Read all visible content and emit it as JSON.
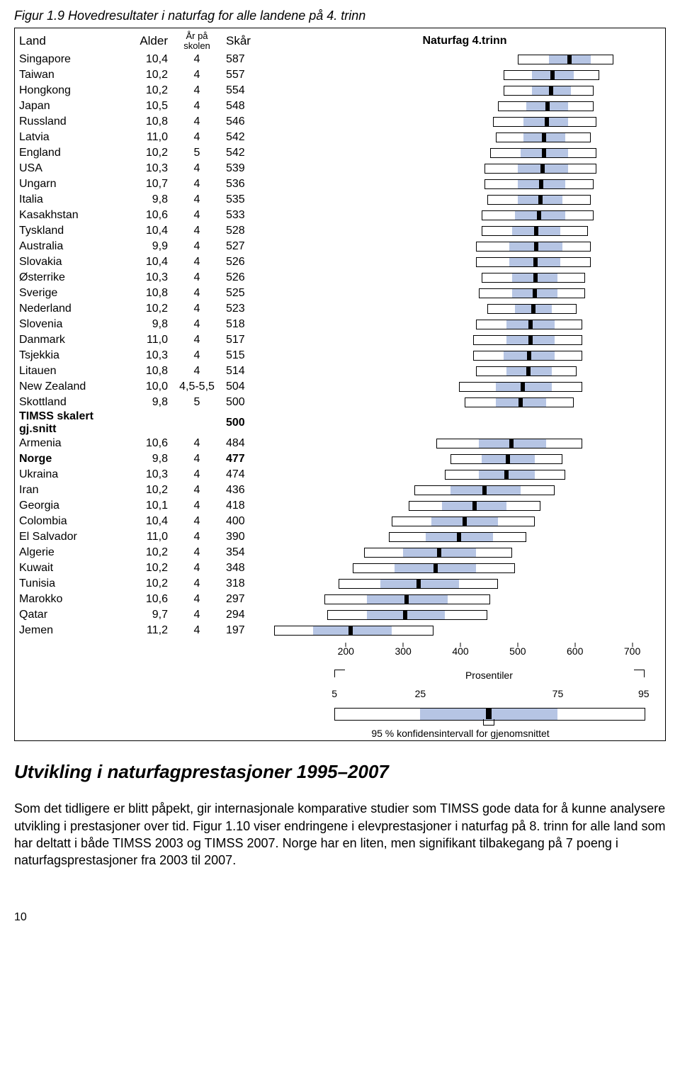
{
  "figure_title": "Figur 1.9 Hovedresultater i naturfag for alle landene på 4. trinn",
  "headers": {
    "land": "Land",
    "alder": "Alder",
    "skolen": "År på skolen",
    "skar": "Skår",
    "chart": "Naturfag 4.trinn"
  },
  "rows": [
    {
      "land": "Singapore",
      "alder": "10,4",
      "skolen": "4",
      "skar": 587,
      "p5": 495,
      "p25": 550,
      "p75": 625,
      "p95": 665,
      "bold": false
    },
    {
      "land": "Taiwan",
      "alder": "10,2",
      "skolen": "4",
      "skar": 557,
      "p5": 470,
      "p25": 520,
      "p75": 595,
      "p95": 640,
      "bold": false
    },
    {
      "land": "Hongkong",
      "alder": "10,2",
      "skolen": "4",
      "skar": 554,
      "p5": 470,
      "p25": 520,
      "p75": 590,
      "p95": 630,
      "bold": false
    },
    {
      "land": "Japan",
      "alder": "10,5",
      "skolen": "4",
      "skar": 548,
      "p5": 460,
      "p25": 510,
      "p75": 585,
      "p95": 630,
      "bold": false
    },
    {
      "land": "Russland",
      "alder": "10,8",
      "skolen": "4",
      "skar": 546,
      "p5": 450,
      "p25": 505,
      "p75": 585,
      "p95": 635,
      "bold": false
    },
    {
      "land": "Latvia",
      "alder": "11,0",
      "skolen": "4",
      "skar": 542,
      "p5": 455,
      "p25": 505,
      "p75": 580,
      "p95": 625,
      "bold": false
    },
    {
      "land": "England",
      "alder": "10,2",
      "skolen": "5",
      "skar": 542,
      "p5": 445,
      "p25": 500,
      "p75": 585,
      "p95": 635,
      "bold": false
    },
    {
      "land": "USA",
      "alder": "10,3",
      "skolen": "4",
      "skar": 539,
      "p5": 435,
      "p25": 495,
      "p75": 585,
      "p95": 635,
      "bold": false
    },
    {
      "land": "Ungarn",
      "alder": "10,7",
      "skolen": "4",
      "skar": 536,
      "p5": 435,
      "p25": 495,
      "p75": 580,
      "p95": 630,
      "bold": false
    },
    {
      "land": "Italia",
      "alder": "9,8",
      "skolen": "4",
      "skar": 535,
      "p5": 440,
      "p25": 495,
      "p75": 575,
      "p95": 625,
      "bold": false
    },
    {
      "land": "Kasakhstan",
      "alder": "10,6",
      "skolen": "4",
      "skar": 533,
      "p5": 430,
      "p25": 490,
      "p75": 580,
      "p95": 630,
      "bold": false
    },
    {
      "land": "Tyskland",
      "alder": "10,4",
      "skolen": "4",
      "skar": 528,
      "p5": 430,
      "p25": 485,
      "p75": 570,
      "p95": 620,
      "bold": false
    },
    {
      "land": "Australia",
      "alder": "9,9",
      "skolen": "4",
      "skar": 527,
      "p5": 420,
      "p25": 480,
      "p75": 575,
      "p95": 625,
      "bold": false
    },
    {
      "land": "Slovakia",
      "alder": "10,4",
      "skolen": "4",
      "skar": 526,
      "p5": 420,
      "p25": 480,
      "p75": 570,
      "p95": 625,
      "bold": false
    },
    {
      "land": "Østerrike",
      "alder": "10,3",
      "skolen": "4",
      "skar": 526,
      "p5": 430,
      "p25": 485,
      "p75": 565,
      "p95": 615,
      "bold": false
    },
    {
      "land": "Sverige",
      "alder": "10,8",
      "skolen": "4",
      "skar": 525,
      "p5": 425,
      "p25": 485,
      "p75": 565,
      "p95": 615,
      "bold": false
    },
    {
      "land": "Nederland",
      "alder": "10,2",
      "skolen": "4",
      "skar": 523,
      "p5": 440,
      "p25": 490,
      "p75": 555,
      "p95": 600,
      "bold": false
    },
    {
      "land": "Slovenia",
      "alder": "9,8",
      "skolen": "4",
      "skar": 518,
      "p5": 420,
      "p25": 475,
      "p75": 560,
      "p95": 610,
      "bold": false
    },
    {
      "land": "Danmark",
      "alder": "11,0",
      "skolen": "4",
      "skar": 517,
      "p5": 415,
      "p25": 475,
      "p75": 560,
      "p95": 610,
      "bold": false
    },
    {
      "land": "Tsjekkia",
      "alder": "10,3",
      "skolen": "4",
      "skar": 515,
      "p5": 415,
      "p25": 470,
      "p75": 560,
      "p95": 610,
      "bold": false
    },
    {
      "land": "Litauen",
      "alder": "10,8",
      "skolen": "4",
      "skar": 514,
      "p5": 420,
      "p25": 475,
      "p75": 555,
      "p95": 600,
      "bold": false
    },
    {
      "land": "New Zealand",
      "alder": "10,0",
      "skolen": "4,5-5,5",
      "skar": 504,
      "p5": 390,
      "p25": 455,
      "p75": 555,
      "p95": 610,
      "bold": false
    },
    {
      "land": "Skottland",
      "alder": "9,8",
      "skolen": "5",
      "skar": 500,
      "p5": 400,
      "p25": 455,
      "p75": 545,
      "p95": 595,
      "bold": false
    },
    {
      "land": "TIMSS skalert gj.snitt",
      "alder": "",
      "skolen": "",
      "skar": 500,
      "p5": null,
      "p25": null,
      "p75": null,
      "p95": null,
      "bold": true
    },
    {
      "land": "Armenia",
      "alder": "10,6",
      "skolen": "4",
      "skar": 484,
      "p5": 350,
      "p25": 425,
      "p75": 545,
      "p95": 610,
      "bold": false
    },
    {
      "land": "Norge",
      "alder": "9,8",
      "skolen": "4",
      "skar": 477,
      "p5": 375,
      "p25": 430,
      "p75": 525,
      "p95": 575,
      "bold": true
    },
    {
      "land": "Ukraina",
      "alder": "10,3",
      "skolen": "4",
      "skar": 474,
      "p5": 365,
      "p25": 425,
      "p75": 525,
      "p95": 580,
      "bold": false
    },
    {
      "land": "Iran",
      "alder": "10,2",
      "skolen": "4",
      "skar": 436,
      "p5": 310,
      "p25": 375,
      "p75": 500,
      "p95": 560,
      "bold": false
    },
    {
      "land": "Georgia",
      "alder": "10,1",
      "skolen": "4",
      "skar": 418,
      "p5": 300,
      "p25": 360,
      "p75": 475,
      "p95": 535,
      "bold": false
    },
    {
      "land": "Colombia",
      "alder": "10,4",
      "skolen": "4",
      "skar": 400,
      "p5": 270,
      "p25": 340,
      "p75": 460,
      "p95": 525,
      "bold": false
    },
    {
      "land": "El Salvador",
      "alder": "11,0",
      "skolen": "4",
      "skar": 390,
      "p5": 265,
      "p25": 330,
      "p75": 450,
      "p95": 510,
      "bold": false
    },
    {
      "land": "Algerie",
      "alder": "10,2",
      "skolen": "4",
      "skar": 354,
      "p5": 220,
      "p25": 290,
      "p75": 420,
      "p95": 485,
      "bold": false
    },
    {
      "land": "Kuwait",
      "alder": "10,2",
      "skolen": "4",
      "skar": 348,
      "p5": 200,
      "p25": 275,
      "p75": 420,
      "p95": 490,
      "bold": false
    },
    {
      "land": "Tunisia",
      "alder": "10,2",
      "skolen": "4",
      "skar": 318,
      "p5": 175,
      "p25": 250,
      "p75": 390,
      "p95": 460,
      "bold": false
    },
    {
      "land": "Marokko",
      "alder": "10,6",
      "skolen": "4",
      "skar": 297,
      "p5": 150,
      "p25": 225,
      "p75": 370,
      "p95": 445,
      "bold": false
    },
    {
      "land": "Qatar",
      "alder": "9,7",
      "skolen": "4",
      "skar": 294,
      "p5": 155,
      "p25": 225,
      "p75": 365,
      "p95": 440,
      "bold": false
    },
    {
      "land": "Jemen",
      "alder": "11,2",
      "skolen": "4",
      "skar": 197,
      "p5": 60,
      "p25": 130,
      "p75": 270,
      "p95": 345,
      "bold": false
    }
  ],
  "axis": {
    "min": 50,
    "max": 750,
    "ticks": [
      200,
      300,
      400,
      500,
      600,
      700
    ]
  },
  "legend": {
    "percentiles_label": "Prosentiler",
    "pticks": [
      5,
      25,
      75,
      95
    ],
    "ci_text": "95 % konfidensintervall for gjenomsnittet",
    "bar": {
      "p5": 180,
      "p25": 330,
      "mean": 450,
      "p75": 570,
      "p95": 720,
      "range_min": 50,
      "range_max": 750
    }
  },
  "section_title": "Utvikling i naturfagprestasjoner 1995–2007",
  "paragraph": "Som det tidligere er blitt påpekt, gir internasjonale komparative studier som TIMSS gode data for å kunne analysere utvikling i prestasjoner over tid. Figur 1.10 viser endringene i elevprestasjoner i naturfag på 8. trinn for alle land som har deltatt i både TIMSS 2003 og TIMSS 2007. Norge har en liten, men signifikant tilbakegang på 7 poeng i naturfagsprestasjoner fra 2003 til 2007.",
  "page_number": "10"
}
